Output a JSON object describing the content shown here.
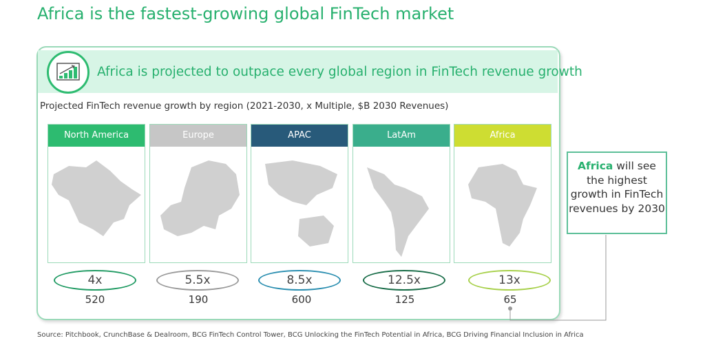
{
  "title": "Africa is the fastest-growing global FinTech market",
  "header": {
    "icon": "growth-chart-icon",
    "text": "Africa is projected to outpace every global region in FinTech revenue growth"
  },
  "subtitle": "Projected FinTech revenue growth by region (2021-2030, x Multiple, $B 2030 Revenues)",
  "regions": [
    {
      "name": "North America",
      "multiple": "4x",
      "revenue": "520",
      "color": "#2dbb70"
    },
    {
      "name": "Europe",
      "multiple": "5.5x",
      "revenue": "190",
      "color": "#c6c6c6"
    },
    {
      "name": "APAC",
      "multiple": "8.5x",
      "revenue": "600",
      "color": "#285a7a"
    },
    {
      "name": "LatAm",
      "multiple": "12.5x",
      "revenue": "125",
      "color": "#3aae8c"
    },
    {
      "name": "Africa",
      "multiple": "13x",
      "revenue": "65",
      "color": "#cedd32"
    }
  ],
  "callout": {
    "highlight": "Africa",
    "text": " will see the highest growth in FinTech revenues by 2030"
  },
  "source": "Source: Pitchbook, CrunchBase & Dealroom, BCG FinTech Control Tower, BCG Unlocking the FinTech Potential in Africa, BCG Driving Financial Inclusion in Africa"
}
